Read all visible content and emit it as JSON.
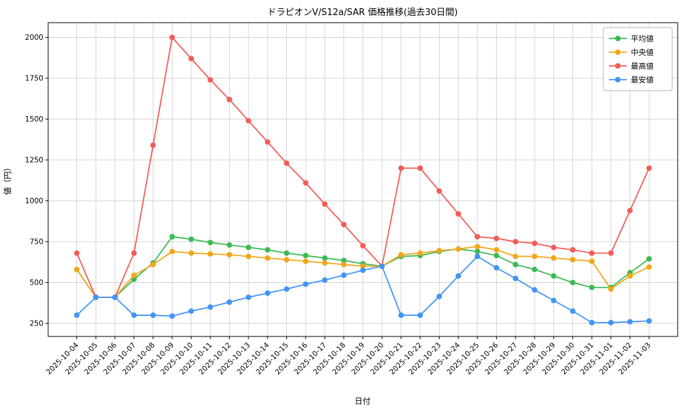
{
  "chart_data": {
    "type": "line",
    "title": "ドラピオンV/S12a/SAR 価格推移(過去30日間)",
    "xlabel": "日付",
    "ylabel": "値（円）",
    "grid": true,
    "legend_position": "upper right",
    "ylim": [
      170,
      2090
    ],
    "yticks": [
      250,
      500,
      750,
      1000,
      1250,
      1500,
      1750,
      2000
    ],
    "x": [
      "2025-10-04",
      "2025-10-05",
      "2025-10-06",
      "2025-10-07",
      "2025-10-08",
      "2025-10-09",
      "2025-10-10",
      "2025-10-11",
      "2025-10-12",
      "2025-10-13",
      "2025-10-14",
      "2025-10-15",
      "2025-10-16",
      "2025-10-17",
      "2025-10-18",
      "2025-10-19",
      "2025-10-20",
      "2025-10-21",
      "2025-10-22",
      "2025-10-23",
      "2025-10-24",
      "2025-10-25",
      "2025-10-26",
      "2025-10-27",
      "2025-10-28",
      "2025-10-29",
      "2025-10-30",
      "2025-10-31",
      "2025-11-01",
      "2025-11-02",
      "2025-11-03"
    ],
    "series": [
      {
        "name": "平均値",
        "key": "average",
        "color": "#3cba54",
        "values": [
          580,
          410,
          410,
          520,
          620,
          780,
          765,
          745,
          730,
          715,
          700,
          680,
          665,
          650,
          635,
          615,
          600,
          660,
          665,
          690,
          705,
          690,
          665,
          610,
          580,
          540,
          500,
          470,
          470,
          560,
          645
        ]
      },
      {
        "name": "中央値",
        "key": "median",
        "color": "#f2a71b",
        "values": [
          580,
          410,
          410,
          545,
          610,
          690,
          680,
          675,
          670,
          660,
          650,
          640,
          630,
          620,
          610,
          600,
          600,
          670,
          680,
          695,
          705,
          720,
          700,
          660,
          660,
          650,
          640,
          630,
          460,
          540,
          595
        ]
      },
      {
        "name": "最高値",
        "key": "max",
        "color": "#f25d58",
        "values": [
          680,
          410,
          410,
          680,
          1340,
          2000,
          1870,
          1740,
          1620,
          1490,
          1360,
          1230,
          1110,
          980,
          855,
          725,
          600,
          1200,
          1200,
          1060,
          920,
          780,
          770,
          750,
          740,
          715,
          700,
          680,
          680,
          940,
          1200
        ]
      },
      {
        "name": "最安値",
        "key": "min",
        "color": "#4295f5",
        "values": [
          300,
          410,
          410,
          300,
          300,
          295,
          325,
          350,
          380,
          410,
          435,
          460,
          490,
          515,
          545,
          575,
          600,
          300,
          300,
          415,
          540,
          660,
          590,
          525,
          455,
          390,
          325,
          255,
          255,
          260,
          265
        ]
      }
    ]
  }
}
